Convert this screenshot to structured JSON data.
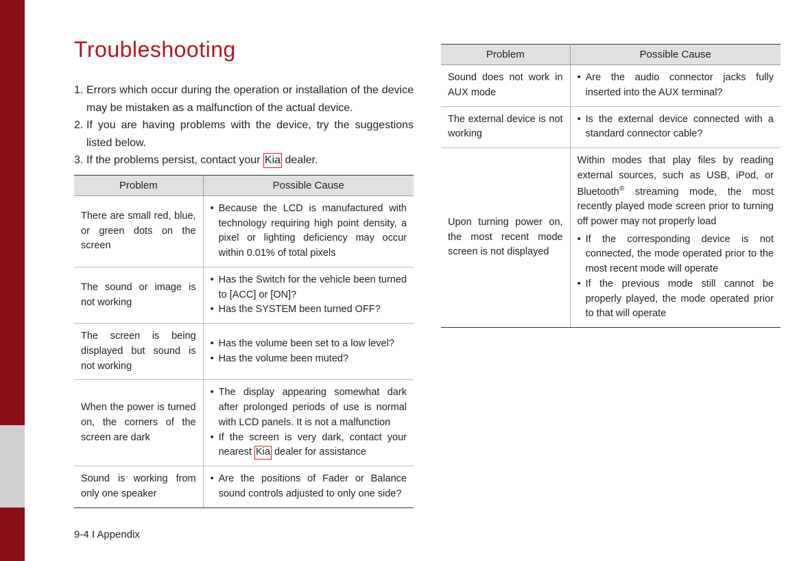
{
  "colors": {
    "sidebar": "#8a0f14",
    "title": "#b11820",
    "table_header_bg": "#e0e0e0",
    "border_dark": "#333333",
    "border_light": "#bbbbbb",
    "highlight_border": "#c62828"
  },
  "title": "Troubleshooting",
  "intro": [
    {
      "n": "1.",
      "t": "Errors which occur during the operation or installation of the device may be mistaken as a malfunction of the actual device."
    },
    {
      "n": "2.",
      "t": "If you are having problems with the device, try the suggestions listed below."
    },
    {
      "n": "3.",
      "t_parts": [
        "If the problems persist, contact your ",
        "Kia",
        " dealer."
      ]
    }
  ],
  "table_headers": {
    "problem": "Problem",
    "cause": "Possible Cause"
  },
  "table1": [
    {
      "problem": "There are small red, blue, or green dots on the screen",
      "causes": [
        "Because the LCD is manufactured with technology requiring high point density, a pixel or lighting deficiency may occur within 0.01% of total pixels"
      ]
    },
    {
      "problem": "The sound or image is not working",
      "causes": [
        "Has the Switch for the vehicle been turned to [ACC] or [ON]?",
        "Has the SYSTEM been turned OFF?"
      ]
    },
    {
      "problem": "The screen is being displayed but sound is not working",
      "causes": [
        "Has the volume been set to a low level?",
        "Has the volume been muted?"
      ]
    },
    {
      "problem": "When the power is turned on, the corners of the screen are dark",
      "causes_special": {
        "items": [
          "The display appearing somewhat dark after prolonged periods of use is normal with LCD panels. It is not a malfunction",
          {
            "pre": "If the screen is very dark, contact your nearest ",
            "kia": "Kia",
            "post": " dealer for assistance"
          }
        ]
      }
    },
    {
      "problem": "Sound is working from only one speaker",
      "causes": [
        "Are the positions of Fader or Balance sound controls adjusted to only one side?"
      ]
    }
  ],
  "table2": [
    {
      "problem": "Sound does not work in AUX mode",
      "causes": [
        "Are the audio connector jacks fully inserted into the AUX terminal?"
      ]
    },
    {
      "problem": "The external device is not working",
      "causes": [
        "Is the external device connected with a standard connector cable?"
      ]
    },
    {
      "problem": "Upon turning power on, the most recent mode screen is not displayed",
      "cause_block": {
        "intro_pre": "Within modes that play files by reading external sources, such as USB, iPod, or Bluetooth",
        "intro_sup": "®",
        "intro_post": " streaming mode, the most recently played mode screen prior to turning off power may not properly load",
        "items": [
          "If the corresponding device is not connected, the mode operated prior to the most recent mode will operate",
          "If the previous mode still cannot be properly played, the mode operated prior to that will operate"
        ]
      }
    }
  ],
  "footer": "9-4 I Appendix"
}
